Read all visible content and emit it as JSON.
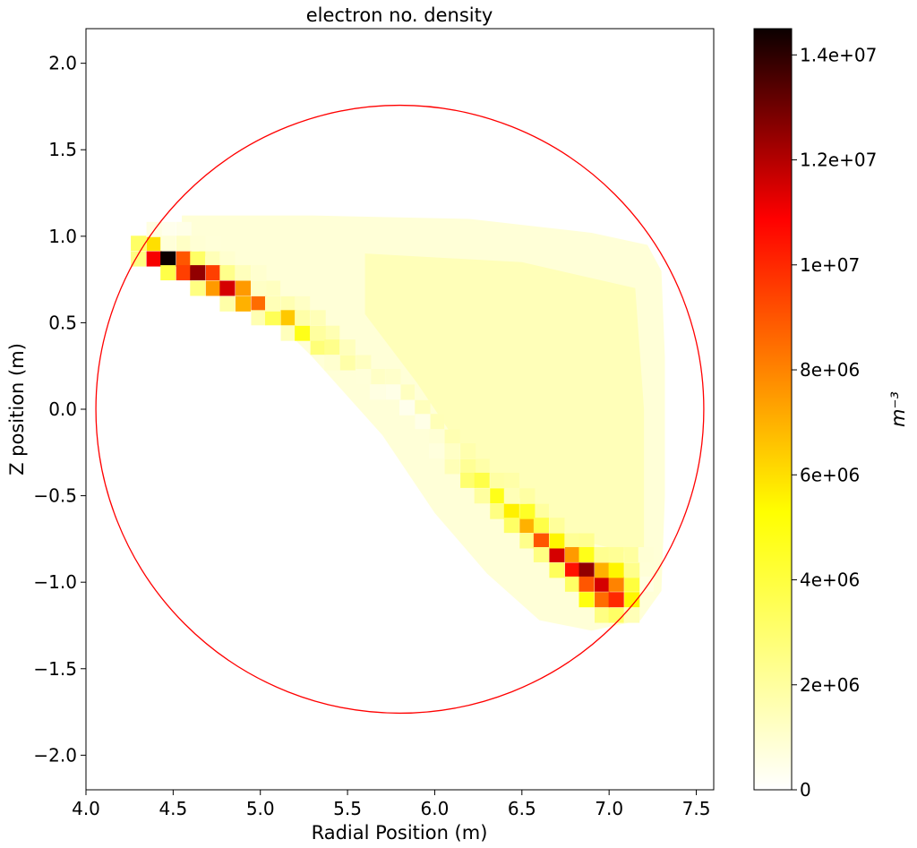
{
  "chart_data": {
    "type": "heatmap",
    "title": "electron no. density",
    "xlabel": "Radial Position (m)",
    "ylabel": "Z position (m)",
    "xlim": [
      4.0,
      7.6
    ],
    "ylim": [
      -2.2,
      2.2
    ],
    "x_ticks": [
      "4.0",
      "4.5",
      "5.0",
      "5.5",
      "6.0",
      "6.5",
      "7.0",
      "7.5"
    ],
    "y_ticks": [
      "−2.0",
      "−1.5",
      "−1.0",
      "−0.5",
      "0.0",
      "0.5",
      "1.0",
      "1.5",
      "2.0"
    ],
    "grid": false,
    "cell_width_m": 0.0857,
    "cell_height_m": 0.0857,
    "colormap": "hot_r",
    "colorbar": {
      "label": "m⁻³",
      "range": [
        0,
        14500000
      ],
      "ticks": [
        0,
        2000000,
        4000000,
        6000000,
        8000000,
        10000000,
        12000000,
        14000000
      ],
      "tick_labels": [
        "0",
        "2e+06",
        "4e+06",
        "6e+06",
        "8e+06",
        "1e+07",
        "1.2e+07",
        "1.4e+07"
      ]
    },
    "boundary_circle": {
      "center_r": 5.8,
      "center_z": 0.0,
      "radius": 1.75,
      "color": "#ff0000"
    },
    "cells": [
      [
        4.3,
        0.96,
        3200000
      ],
      [
        4.3,
        0.87,
        2600000
      ],
      [
        4.39,
        0.96,
        6000000
      ],
      [
        4.39,
        0.87,
        11000000
      ],
      [
        4.39,
        1.04,
        600000
      ],
      [
        4.47,
        0.87,
        14500000
      ],
      [
        4.47,
        0.79,
        3800000
      ],
      [
        4.47,
        0.96,
        800000
      ],
      [
        4.56,
        0.87,
        9000000
      ],
      [
        4.56,
        0.79,
        9500000
      ],
      [
        4.64,
        0.87,
        3200000
      ],
      [
        4.64,
        0.79,
        12500000
      ],
      [
        4.64,
        0.7,
        2600000
      ],
      [
        4.73,
        0.79,
        9500000
      ],
      [
        4.73,
        0.7,
        7500000
      ],
      [
        4.81,
        0.79,
        2400000
      ],
      [
        4.81,
        0.7,
        11500000
      ],
      [
        4.81,
        0.61,
        1800000
      ],
      [
        4.9,
        0.7,
        7500000
      ],
      [
        4.9,
        0.61,
        7000000
      ],
      [
        4.99,
        0.61,
        8500000
      ],
      [
        4.99,
        0.53,
        1600000
      ],
      [
        4.99,
        0.7,
        1200000
      ],
      [
        5.07,
        0.53,
        3500000
      ],
      [
        5.07,
        0.61,
        1500000
      ],
      [
        5.16,
        0.53,
        6500000
      ],
      [
        5.16,
        0.44,
        1400000
      ],
      [
        5.24,
        0.44,
        4800000
      ],
      [
        5.24,
        0.53,
        1800000
      ],
      [
        5.33,
        0.36,
        2800000
      ],
      [
        5.33,
        0.44,
        2000000
      ],
      [
        5.41,
        0.36,
        2400000
      ],
      [
        5.41,
        0.27,
        1000000
      ],
      [
        5.5,
        0.27,
        1800000
      ],
      [
        5.59,
        0.19,
        800000
      ],
      [
        5.67,
        0.1,
        600000
      ],
      [
        5.76,
        0.1,
        500000
      ],
      [
        5.84,
        0.01,
        400000
      ],
      [
        5.93,
        -0.07,
        500000
      ],
      [
        6.01,
        -0.16,
        900000
      ],
      [
        6.01,
        -0.24,
        700000
      ],
      [
        6.1,
        -0.33,
        1500000
      ],
      [
        6.1,
        -0.24,
        1200000
      ],
      [
        6.19,
        -0.33,
        2200000
      ],
      [
        6.19,
        -0.41,
        3000000
      ],
      [
        6.27,
        -0.41,
        3800000
      ],
      [
        6.27,
        -0.5,
        2000000
      ],
      [
        6.36,
        -0.5,
        4800000
      ],
      [
        6.36,
        -0.59,
        2600000
      ],
      [
        6.44,
        -0.59,
        5600000
      ],
      [
        6.44,
        -0.67,
        3200000
      ],
      [
        6.44,
        -0.5,
        1500000
      ],
      [
        6.53,
        -0.67,
        7000000
      ],
      [
        6.53,
        -0.59,
        4500000
      ],
      [
        6.53,
        -0.76,
        2400000
      ],
      [
        6.61,
        -0.76,
        9000000
      ],
      [
        6.61,
        -0.67,
        3800000
      ],
      [
        6.61,
        -0.84,
        2600000
      ],
      [
        6.7,
        -0.84,
        11500000
      ],
      [
        6.7,
        -0.76,
        5500000
      ],
      [
        6.7,
        -0.93,
        3400000
      ],
      [
        6.79,
        -0.93,
        10500000
      ],
      [
        6.79,
        -0.84,
        7500000
      ],
      [
        6.79,
        -1.01,
        3200000
      ],
      [
        6.87,
        -0.93,
        12500000
      ],
      [
        6.87,
        -1.01,
        9000000
      ],
      [
        6.87,
        -1.1,
        5000000
      ],
      [
        6.87,
        -0.84,
        4800000
      ],
      [
        6.96,
        -1.01,
        11500000
      ],
      [
        6.96,
        -1.1,
        8500000
      ],
      [
        6.96,
        -0.93,
        7000000
      ],
      [
        6.96,
        -1.19,
        2600000
      ],
      [
        7.04,
        -1.1,
        10000000
      ],
      [
        7.04,
        -1.01,
        8000000
      ],
      [
        7.04,
        -0.93,
        5500000
      ],
      [
        7.04,
        -1.19,
        3200000
      ],
      [
        7.13,
        -1.1,
        5500000
      ],
      [
        7.13,
        -1.01,
        4000000
      ],
      [
        7.13,
        -0.93,
        2400000
      ],
      [
        7.13,
        -1.19,
        1500000
      ]
    ],
    "background_field": [
      [
        4.47,
        1.04,
        400000
      ],
      [
        4.56,
        1.04,
        500000
      ],
      [
        4.56,
        0.96,
        1200000
      ],
      [
        4.64,
        0.96,
        900000
      ],
      [
        4.73,
        0.96,
        800000
      ],
      [
        4.73,
        0.87,
        1500000
      ],
      [
        4.81,
        0.87,
        1000000
      ],
      [
        4.9,
        0.79,
        1400000
      ],
      [
        4.99,
        0.79,
        1000000
      ],
      [
        5.07,
        0.7,
        1300000
      ],
      [
        5.16,
        0.61,
        1600000
      ],
      [
        5.24,
        0.61,
        1200000
      ],
      [
        5.33,
        0.53,
        1500000
      ],
      [
        5.41,
        0.44,
        1600000
      ],
      [
        5.5,
        0.36,
        1400000
      ],
      [
        5.59,
        0.27,
        1300000
      ],
      [
        5.67,
        0.19,
        1200000
      ],
      [
        5.76,
        0.19,
        1100000
      ],
      [
        5.84,
        0.1,
        1300000
      ],
      [
        5.93,
        0.01,
        1400000
      ],
      [
        6.01,
        -0.07,
        1500000
      ],
      [
        6.1,
        -0.16,
        1600000
      ],
      [
        6.19,
        -0.24,
        1700000
      ],
      [
        6.27,
        -0.33,
        1800000
      ],
      [
        6.36,
        -0.41,
        1900000
      ],
      [
        6.44,
        -0.41,
        1800000
      ],
      [
        6.53,
        -0.5,
        1900000
      ],
      [
        6.61,
        -0.59,
        2000000
      ],
      [
        6.7,
        -0.67,
        2100000
      ],
      [
        6.79,
        -0.76,
        2200000
      ],
      [
        6.87,
        -0.76,
        2300000
      ],
      [
        6.96,
        -0.84,
        2300000
      ],
      [
        7.04,
        -0.84,
        2200000
      ],
      [
        7.13,
        -0.84,
        2000000
      ],
      [
        7.21,
        -1.01,
        600000
      ],
      [
        7.21,
        -0.84,
        900000
      ]
    ]
  }
}
